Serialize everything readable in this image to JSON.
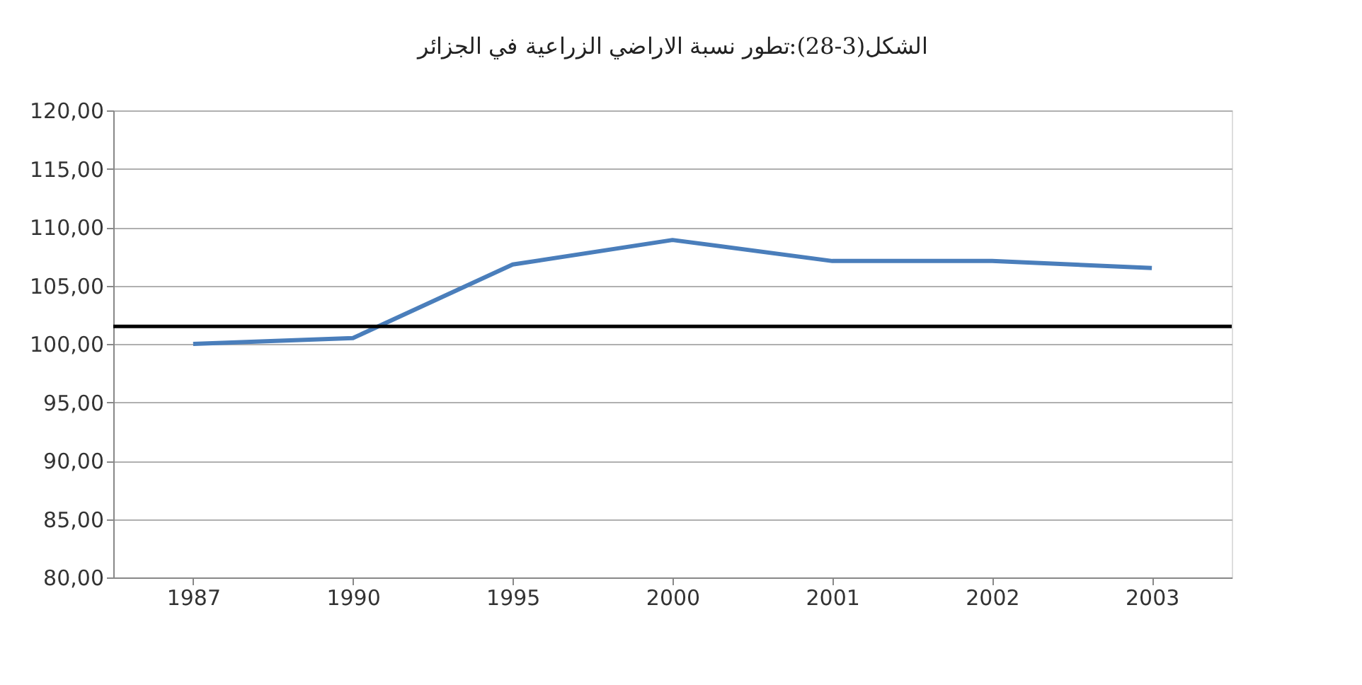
{
  "chart_data": {
    "type": "line",
    "title": "الشكل(3-28):تطور نسبة الاراضي الزراعية في الجزائر",
    "categories": [
      "1987",
      "1990",
      "1995",
      "2000",
      "2001",
      "2002",
      "2003"
    ],
    "series": [
      {
        "color": "#4a7ebb",
        "values": [
          100.0,
          100.5,
          106.8,
          108.9,
          107.1,
          107.1,
          106.5
        ]
      }
    ],
    "ylim": [
      80,
      120
    ],
    "yticks": [
      {
        "value": 80,
        "label": "80,00"
      },
      {
        "value": 85,
        "label": "85,00"
      },
      {
        "value": 90,
        "label": "90,00"
      },
      {
        "value": 95,
        "label": "95,00"
      },
      {
        "value": 100,
        "label": "100,00"
      },
      {
        "value": 105,
        "label": "105,00"
      },
      {
        "value": 110,
        "label": "110,00"
      },
      {
        "value": 115,
        "label": "115,00"
      },
      {
        "value": 120,
        "label": "120,00"
      }
    ],
    "ref_lines": [
      {
        "axis": "y",
        "value": 101.5,
        "color": "#000000",
        "line_style": "solid"
      }
    ],
    "grid": "y",
    "marker": "none",
    "line_style": "solid"
  }
}
